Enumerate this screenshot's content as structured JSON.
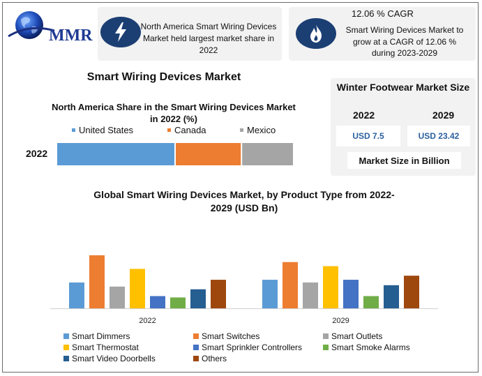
{
  "logo": {
    "text": "MMR"
  },
  "card1": {
    "icon": "lightning-icon",
    "text": "North America Smart Wiring Devices Market held largest market share in 2022"
  },
  "card2": {
    "icon": "fire-icon",
    "title": "12.06 % CAGR",
    "text": "Smart Wiring Devices Market to grow at a CAGR of 12.06 % during 2023-2029"
  },
  "market_size_card": {
    "title": "Winter Footwear Market Size",
    "year_2022": "2022",
    "year_2029": "2029",
    "value_2022": "USD 7.5",
    "value_2029": "USD 23.42",
    "unit": "Market Size in Billion"
  },
  "main_title": "Smart Wiring Devices Market",
  "chart_data": [
    {
      "type": "bar",
      "orientation": "horizontal-stacked",
      "title": "North America Share in the Smart Wiring Devices Market in 2022 (%)",
      "categories": [
        "2022"
      ],
      "series": [
        {
          "name": "United States",
          "values": [
            50
          ],
          "color": "#5b9bd5"
        },
        {
          "name": "Canada",
          "values": [
            28
          ],
          "color": "#ed7d31"
        },
        {
          "name": "Mexico",
          "values": [
            22
          ],
          "color": "#a5a5a5"
        }
      ],
      "legend": "top"
    },
    {
      "type": "bar",
      "title": "Global Smart Wiring Devices Market, by Product Type from 2022-2029  (USD Bn)",
      "categories": [
        "2022",
        "2029"
      ],
      "series": [
        {
          "name": "Smart Dimmers",
          "values": [
            1.9,
            2.1
          ],
          "color": "#5b9bd5"
        },
        {
          "name": "Smart Switches",
          "values": [
            3.9,
            3.4
          ],
          "color": "#ed7d31"
        },
        {
          "name": "Smart Outlets",
          "values": [
            1.6,
            1.9
          ],
          "color": "#a5a5a5"
        },
        {
          "name": "Smart Thermostat",
          "values": [
            2.9,
            3.1
          ],
          "color": "#ffc000"
        },
        {
          "name": "Smart Sprinkler Controllers",
          "values": [
            0.9,
            2.1
          ],
          "color": "#4472c4"
        },
        {
          "name": "Smart Smoke Alarms",
          "values": [
            0.8,
            0.9
          ],
          "color": "#70ad47"
        },
        {
          "name": "Smart Video Doorbells",
          "values": [
            1.4,
            1.7
          ],
          "color": "#255e91"
        },
        {
          "name": "Others",
          "values": [
            2.1,
            2.4
          ],
          "color": "#9e480e"
        }
      ],
      "ylim": [
        0,
        4
      ],
      "grid": false,
      "legend": "bottom"
    }
  ]
}
